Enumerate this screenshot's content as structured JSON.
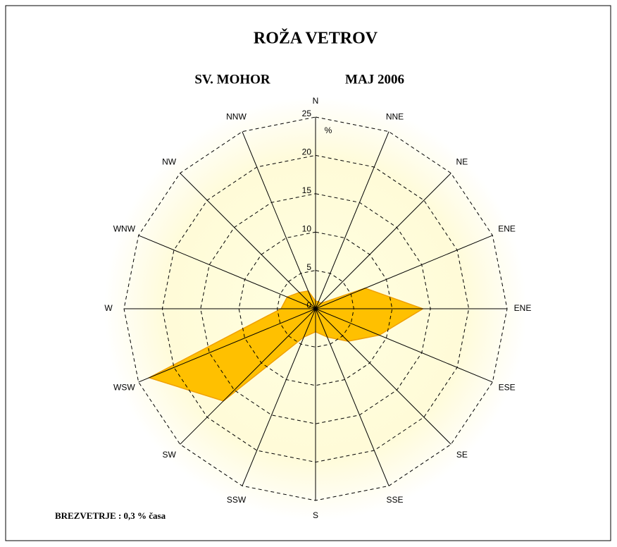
{
  "chart_data": {
    "type": "radar",
    "title": "ROŽA VETROV",
    "subtitle": [
      "SV. MOHOR",
      "MAJ 2006"
    ],
    "axis_label": "%",
    "categories": [
      "N",
      "NNE",
      "NE",
      "ENE",
      "ENE",
      "ESE",
      "SE",
      "SSE",
      "S",
      "SSW",
      "SW",
      "WSW",
      "W",
      "WNW",
      "NW",
      "NNW"
    ],
    "values": [
      1,
      1,
      1,
      7,
      14,
      9,
      6,
      4,
      3,
      4,
      17,
      23.5,
      4.5,
      4,
      3,
      2.5
    ],
    "color": "#ffc000",
    "edge_color": "#f0a000",
    "rlim": [
      0,
      25
    ],
    "rticks": [
      0,
      5,
      10,
      15,
      20,
      25
    ],
    "grid": true,
    "footnote": "BREZVETRJE : 0,3  % časa"
  }
}
